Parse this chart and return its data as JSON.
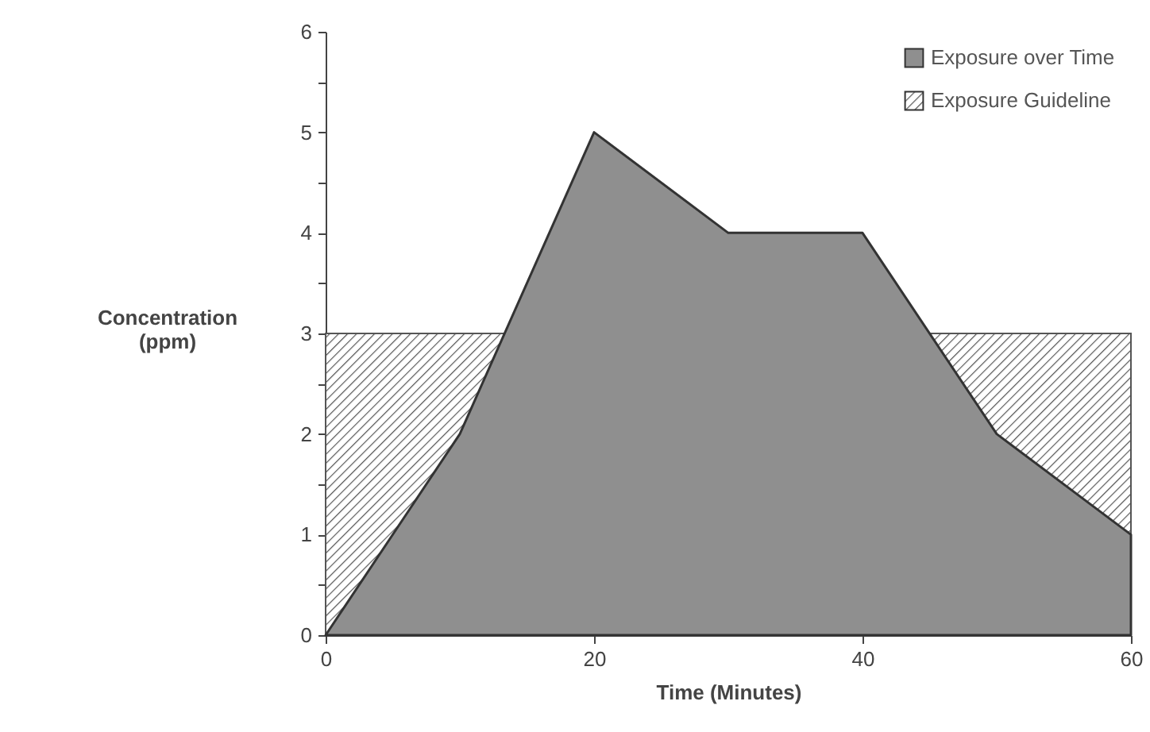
{
  "chart_data": {
    "type": "area",
    "xlabel": "Time  (Minutes)",
    "ylabel": "Concentration\n(ppm)",
    "x": [
      0,
      10,
      20,
      30,
      40,
      50,
      60
    ],
    "series": [
      {
        "name": "Exposure over Time",
        "color": "#8f8f8f",
        "values": [
          0,
          2,
          5,
          4,
          4,
          2,
          1
        ]
      }
    ],
    "bands": [
      {
        "axis": "y",
        "from": 0,
        "to": 3,
        "label": "Exposure Guideline",
        "color": "#555555"
      }
    ],
    "xlim": [
      0,
      60
    ],
    "xticks": [
      0,
      20,
      40,
      60
    ],
    "ylim": [
      0,
      6
    ],
    "yticks": [
      0,
      {
        "value": 0.5,
        "label": null
      },
      1,
      {
        "value": 1.5,
        "label": null
      },
      2,
      {
        "value": 2.5,
        "label": null
      },
      3,
      {
        "value": 3.5,
        "label": null
      },
      4,
      {
        "value": 4.5,
        "label": null
      },
      5,
      {
        "value": 5.5,
        "label": null
      },
      6
    ],
    "grid": false,
    "legend": "top right"
  }
}
